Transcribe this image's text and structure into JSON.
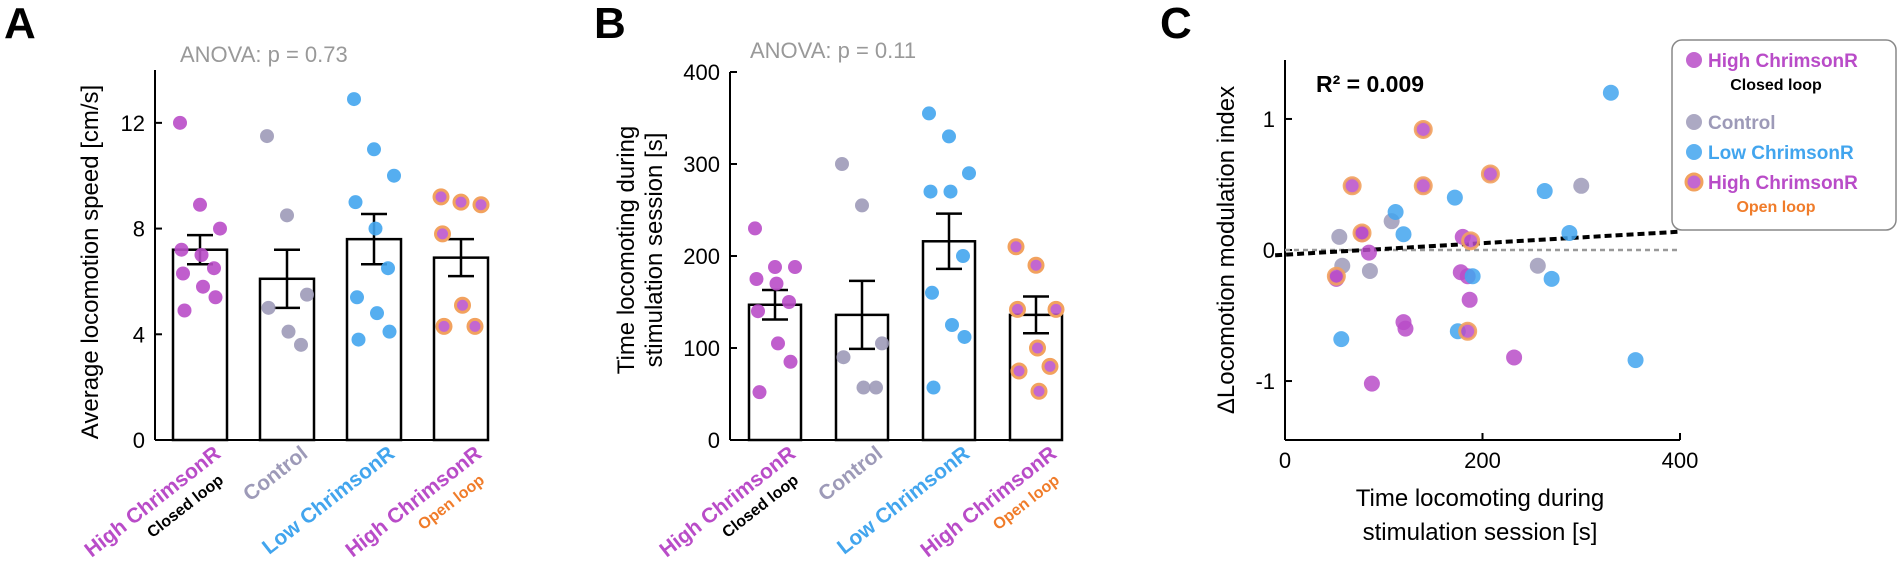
{
  "colors": {
    "high": "#b94cc8",
    "control": "#9d9ab8",
    "low": "#42a5ee",
    "open": "#f2a25e",
    "open_text": "#f07c2a",
    "closed_text": "#000000",
    "bar_edge": "#000000"
  },
  "chart_data": [
    {
      "panel": "A",
      "type": "bar",
      "annotation": "ANOVA: p = 0.73",
      "ylabel": "Average locomotion speed [cm/s]",
      "ylim": [
        0,
        14
      ],
      "yticks": [
        "0",
        "4",
        "8",
        "12"
      ],
      "categories": [
        {
          "label": "High ChrimsonR",
          "sublabel": "Closed loop",
          "color_key": "high",
          "sub_color_key": "closed_text"
        },
        {
          "label": "Control",
          "sublabel": "",
          "color_key": "control",
          "sub_color_key": ""
        },
        {
          "label": "Low ChrimsonR",
          "sublabel": "",
          "color_key": "low",
          "sub_color_key": ""
        },
        {
          "label": "High ChrimsonR",
          "sublabel": "Open loop",
          "color_key": "high",
          "sub_color_key": "open_text"
        }
      ],
      "means": [
        7.2,
        6.1,
        7.6,
        6.9
      ],
      "sem": [
        0.55,
        1.1,
        0.95,
        0.7
      ],
      "points": [
        [
          12.0,
          8.9,
          8.0,
          7.2,
          7.0,
          6.5,
          6.3,
          5.8,
          5.4,
          4.9
        ],
        [
          11.5,
          8.5,
          5.5,
          5.0,
          4.1,
          3.6
        ],
        [
          12.9,
          11.0,
          10.0,
          9.0,
          8.0,
          6.5,
          5.4,
          4.8,
          4.1,
          3.8
        ],
        [
          9.2,
          9.0,
          8.9,
          7.8,
          5.1,
          4.3,
          4.3
        ]
      ]
    },
    {
      "panel": "B",
      "type": "bar",
      "annotation": "ANOVA: p = 0.11",
      "ylabel": "Time locomoting during stimulation session [s]",
      "ylabel_lines": [
        "Time locomoting during",
        "stimulation session [s]"
      ],
      "ylim": [
        0,
        400
      ],
      "yticks": [
        "0",
        "100",
        "200",
        "300",
        "400"
      ],
      "categories": [
        {
          "label": "High ChrimsonR",
          "sublabel": "Closed loop",
          "color_key": "high",
          "sub_color_key": "closed_text"
        },
        {
          "label": "Control",
          "sublabel": "",
          "color_key": "control",
          "sub_color_key": ""
        },
        {
          "label": "Low ChrimsonR",
          "sublabel": "",
          "color_key": "low",
          "sub_color_key": ""
        },
        {
          "label": "High ChrimsonR",
          "sublabel": "Open loop",
          "color_key": "high",
          "sub_color_key": "open_text"
        }
      ],
      "means": [
        147,
        136,
        216,
        136
      ],
      "sem": [
        16,
        37,
        30,
        20
      ],
      "points": [
        [
          230,
          188,
          188,
          175,
          170,
          150,
          140,
          105,
          85,
          52
        ],
        [
          300,
          255,
          105,
          90,
          57,
          57
        ],
        [
          355,
          330,
          290,
          270,
          270,
          200,
          160,
          125,
          112,
          57
        ],
        [
          210,
          190,
          142,
          142,
          100,
          80,
          75,
          53
        ]
      ]
    },
    {
      "panel": "C",
      "type": "scatter",
      "annotation": "R² = 0.009",
      "xlabel": "Time locomoting during stimulation session [s]",
      "xlabel_lines": [
        "Time locomoting during",
        "stimulation session [s]"
      ],
      "ylabel": "ΔLocomotion modulation index",
      "xlim": [
        0,
        400
      ],
      "ylim": [
        -1.45,
        1.45
      ],
      "xticks": [
        "0",
        "200",
        "400"
      ],
      "yticks": [
        "-1",
        "0",
        "1"
      ],
      "fit_line": {
        "x": [
          -10,
          400
        ],
        "y": [
          -0.04,
          0.14
        ]
      },
      "zero_line": 0,
      "legend": [
        {
          "label": "High ChrimsonR",
          "sublabel": "Closed loop",
          "color_key": "high",
          "sub_color_key": "closed_text",
          "ring": false
        },
        {
          "label": "Control",
          "sublabel": "",
          "color_key": "control",
          "sub_color_key": "",
          "ring": false
        },
        {
          "label": "Low ChrimsonR",
          "sublabel": "",
          "color_key": "low",
          "sub_color_key": "",
          "ring": false
        },
        {
          "label": "High ChrimsonR",
          "sublabel": "Open loop",
          "color_key": "high",
          "sub_color_key": "open_text",
          "ring": true
        }
      ],
      "series": [
        {
          "group": "high_closed",
          "x": [
            52,
            78,
            85,
            88,
            120,
            122,
            178,
            180,
            185,
            187,
            232
          ],
          "y": [
            -0.22,
            0.12,
            -0.02,
            -1.02,
            -0.55,
            -0.6,
            -0.17,
            0.1,
            -0.2,
            -0.38,
            -0.82
          ]
        },
        {
          "group": "control",
          "x": [
            55,
            58,
            86,
            108,
            256,
            300
          ],
          "y": [
            0.1,
            -0.12,
            -0.16,
            0.22,
            -0.12,
            0.49
          ]
        },
        {
          "group": "low",
          "x": [
            57,
            112,
            120,
            172,
            175,
            190,
            263,
            270,
            288,
            330,
            355
          ],
          "y": [
            -0.68,
            0.29,
            0.12,
            0.4,
            -0.62,
            -0.2,
            0.45,
            -0.22,
            0.13,
            1.2,
            -0.84
          ]
        },
        {
          "group": "high_open",
          "x": [
            52,
            68,
            78,
            140,
            140,
            185,
            188,
            208
          ],
          "y": [
            -0.2,
            0.49,
            0.13,
            0.92,
            0.49,
            -0.62,
            0.07,
            0.58
          ]
        }
      ]
    }
  ]
}
